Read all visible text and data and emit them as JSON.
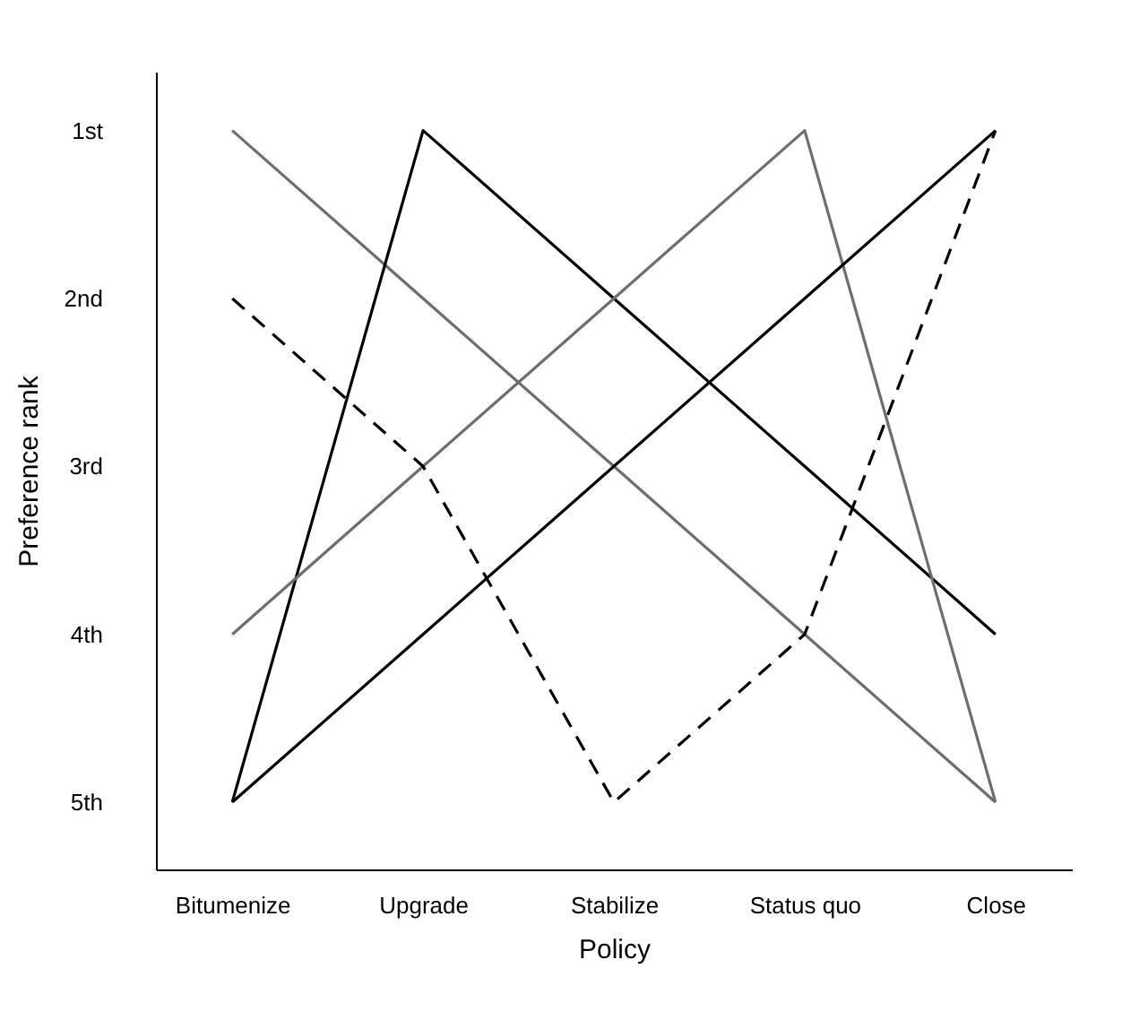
{
  "chart_data": {
    "type": "line",
    "xlabel": "Policy",
    "ylabel": "Preference rank",
    "categories": [
      "Bitumenize",
      "Upgrade",
      "Stabilize",
      "Status quo",
      "Close"
    ],
    "series": [
      {
        "color": "#6e6e6e",
        "values": [
          1,
          2,
          3,
          4,
          5
        ]
      },
      {
        "color": "#000000",
        "values": [
          5,
          1,
          2,
          3,
          4
        ]
      },
      {
        "color": "#6e6e6e",
        "values": [
          4,
          3,
          2,
          1,
          5
        ]
      },
      {
        "color": "#000000",
        "values": [
          5,
          4,
          3,
          2,
          1
        ]
      },
      {
        "color": "#000000",
        "values": [
          2,
          3,
          5,
          4,
          1
        ],
        "line_style": "dashed"
      }
    ],
    "ylim": [
      5.4,
      0.65
    ],
    "yticks": [
      {
        "value": 1,
        "label": "1st"
      },
      {
        "value": 2,
        "label": "2nd"
      },
      {
        "value": 3,
        "label": "3rd"
      },
      {
        "value": 4,
        "label": "4th"
      },
      {
        "value": 5,
        "label": "5th"
      }
    ],
    "grid": false,
    "marker": "none",
    "line_style": "solid"
  }
}
